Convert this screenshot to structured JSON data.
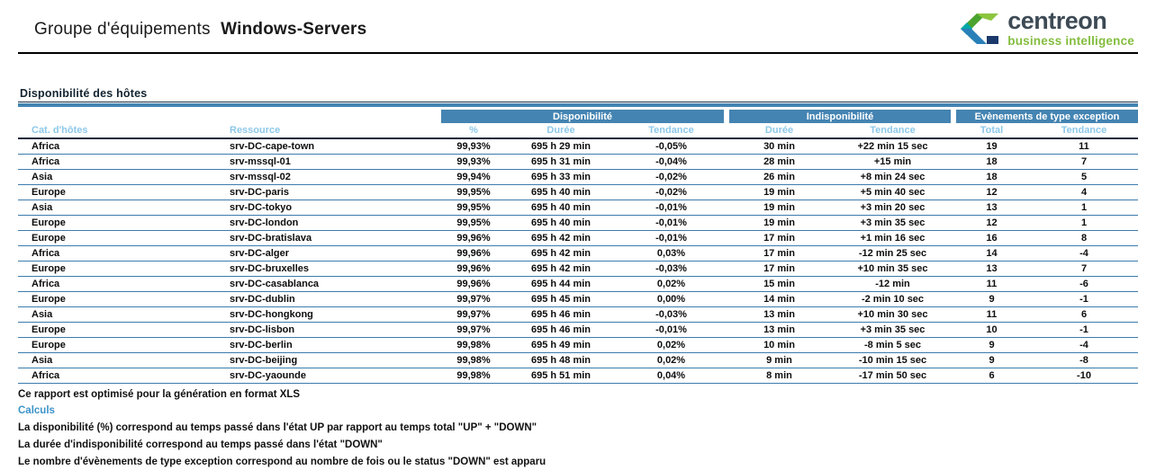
{
  "header": {
    "title_prefix": "Groupe d'équipements",
    "title_bold": "Windows-Servers",
    "logo": {
      "name": "centreon",
      "subtitle": "business intelligence",
      "icon": "centreon-c-icon",
      "colors": {
        "green_light": "#8cc63f",
        "green_dark": "#4ba32f",
        "teal": "#00a7a7",
        "teal_dark": "#0c7e8c",
        "blue": "#2980b9",
        "navy": "#1b3a6b",
        "wordmark": "#3d4a55",
        "subtitle_green": "#84bd3f"
      }
    }
  },
  "section": {
    "title": "Disponibilité des hôtes"
  },
  "table": {
    "groups": [
      {
        "label": "Disponibilité"
      },
      {
        "label": "Indisponibilité"
      },
      {
        "label": "Evènements de type exception"
      }
    ],
    "columns": [
      "Cat. d'hôtes",
      "Ressource",
      "%",
      "Durée",
      "Tendance",
      "Durée",
      "Tendance",
      "Total",
      "Tendance"
    ],
    "rows": [
      [
        "Africa",
        "srv-DC-cape-town",
        "99,93%",
        "695 h 29 min",
        "-0,05%",
        "30 min",
        "+22 min 15 sec",
        "19",
        "11"
      ],
      [
        "Africa",
        "srv-mssql-01",
        "99,93%",
        "695 h 31 min",
        "-0,04%",
        "28 min",
        "+15 min",
        "18",
        "7"
      ],
      [
        "Asia",
        "srv-mssql-02",
        "99,94%",
        "695 h 33 min",
        "-0,02%",
        "26 min",
        "+8 min 24 sec",
        "18",
        "5"
      ],
      [
        "Europe",
        "srv-DC-paris",
        "99,95%",
        "695 h 40 min",
        "-0,02%",
        "19 min",
        "+5 min 40 sec",
        "12",
        "4"
      ],
      [
        "Asia",
        "srv-DC-tokyo",
        "99,95%",
        "695 h 40 min",
        "-0,01%",
        "19 min",
        "+3 min 20 sec",
        "13",
        "1"
      ],
      [
        "Europe",
        "srv-DC-london",
        "99,95%",
        "695 h 40 min",
        "-0,01%",
        "19 min",
        "+3 min 35 sec",
        "12",
        "1"
      ],
      [
        "Europe",
        "srv-DC-bratislava",
        "99,96%",
        "695 h 42 min",
        "-0,01%",
        "17 min",
        "+1 min 16 sec",
        "16",
        "8"
      ],
      [
        "Africa",
        "srv-DC-alger",
        "99,96%",
        "695 h 42 min",
        "0,03%",
        "17 min",
        "-12 min 25 sec",
        "14",
        "-4"
      ],
      [
        "Europe",
        "srv-DC-bruxelles",
        "99,96%",
        "695 h 42 min",
        "-0,03%",
        "17 min",
        "+10 min 35 sec",
        "13",
        "7"
      ],
      [
        "Africa",
        "srv-DC-casablanca",
        "99,96%",
        "695 h 44 min",
        "0,02%",
        "15 min",
        "-12 min",
        "11",
        "-6"
      ],
      [
        "Europe",
        "srv-DC-dublin",
        "99,97%",
        "695 h 45 min",
        "0,00%",
        "14 min",
        "-2 min 10 sec",
        "9",
        "-1"
      ],
      [
        "Asia",
        "srv-DC-hongkong",
        "99,97%",
        "695 h 46 min",
        "-0,03%",
        "13 min",
        "+10 min 30 sec",
        "11",
        "6"
      ],
      [
        "Europe",
        "srv-DC-lisbon",
        "99,97%",
        "695 h 46 min",
        "-0,01%",
        "13 min",
        "+3 min 35 sec",
        "10",
        "-1"
      ],
      [
        "Europe",
        "srv-DC-berlin",
        "99,98%",
        "695 h 49 min",
        "0,02%",
        "10 min",
        "-8 min 5 sec",
        "9",
        "-4"
      ],
      [
        "Asia",
        "srv-DC-beijing",
        "99,98%",
        "695 h 48 min",
        "0,02%",
        "9 min",
        "-10 min 15 sec",
        "9",
        "-8"
      ],
      [
        "Africa",
        "srv-DC-yaounde",
        "99,98%",
        "695 h 51 min",
        "0,04%",
        "8 min",
        "-17 min 50 sec",
        "6",
        "-10"
      ]
    ]
  },
  "footer": {
    "note": "Ce rapport est optimisé pour la génération en format XLS",
    "calculs_label": "Calculs",
    "lines": [
      "La disponibilité (%) correspond au temps passé dans l'état UP par rapport au temps total \"UP\" + \"DOWN\"",
      "La durée d'indisponibilité correspond au temps passé dans l'état \"DOWN\"",
      "Le nombre d'évènements de type exception correspond au nombre de fois ou le status \"DOWN\" est apparu"
    ]
  },
  "theme": {
    "group_header_bg": "#4484b2",
    "subheader_text": "#8dc8e8",
    "row_border": "#3c7cad",
    "header_rule": "#000000",
    "title_underline_blue": "#4484b2"
  }
}
